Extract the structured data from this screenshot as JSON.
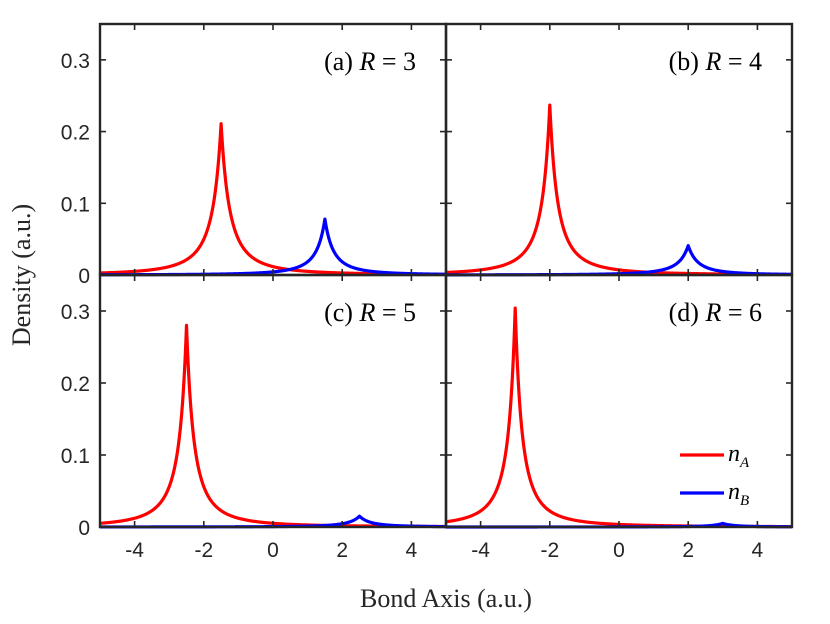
{
  "chart_data": {
    "type": "line",
    "figure": {
      "xlabel": "Bond Axis (a.u.)",
      "ylabel": "Density (a.u.)",
      "xlim": [
        -5,
        5
      ],
      "ylim": [
        0,
        0.35
      ],
      "xticks": [
        -4,
        -2,
        0,
        2,
        4
      ],
      "xtick_labels": [
        "-4",
        "-2",
        "0",
        "2",
        "4"
      ],
      "yticks": [
        0,
        0.1,
        0.2,
        0.3
      ],
      "ytick_labels": [
        "0",
        "0.1",
        "0.2",
        "0.3"
      ],
      "grid": false,
      "legend": {
        "placement": "bottom-right of panel (d)",
        "entries": [
          {
            "symbol": "n",
            "sub": "A",
            "color": "#ff0000"
          },
          {
            "symbol": "n",
            "sub": "B",
            "color": "#0000ff"
          }
        ]
      }
    },
    "panels": [
      {
        "label_prefix": "(a) ",
        "label_var": "R",
        "label_eq": " = 3",
        "R": 3,
        "series": [
          {
            "name": "n_A",
            "color": "#ff0000",
            "center": -1.5,
            "peak": 0.211,
            "halfwidth": 0.35
          },
          {
            "name": "n_B",
            "color": "#0000ff",
            "center": 1.5,
            "peak": 0.078,
            "halfwidth": 0.35
          }
        ]
      },
      {
        "label_prefix": "(b) ",
        "label_var": "R",
        "label_eq": " = 4",
        "R": 4,
        "series": [
          {
            "name": "n_A",
            "color": "#ff0000",
            "center": -2.0,
            "peak": 0.237,
            "halfwidth": 0.32
          },
          {
            "name": "n_B",
            "color": "#0000ff",
            "center": 2.0,
            "peak": 0.041,
            "halfwidth": 0.4
          }
        ]
      },
      {
        "label_prefix": "(c) ",
        "label_var": "R",
        "label_eq": " = 5",
        "R": 5,
        "series": [
          {
            "name": "n_A",
            "color": "#ff0000",
            "center": -2.5,
            "peak": 0.28,
            "halfwidth": 0.3
          },
          {
            "name": "n_B",
            "color": "#0000ff",
            "center": 2.5,
            "peak": 0.015,
            "halfwidth": 0.45
          }
        ]
      },
      {
        "label_prefix": "(d) ",
        "label_var": "R",
        "label_eq": " = 6",
        "R": 6,
        "series": [
          {
            "name": "n_A",
            "color": "#ff0000",
            "center": -3.0,
            "peak": 0.304,
            "halfwidth": 0.28
          },
          {
            "name": "n_B",
            "color": "#0000ff",
            "center": 3.0,
            "peak": 0.005,
            "halfwidth": 0.45
          }
        ]
      }
    ]
  }
}
